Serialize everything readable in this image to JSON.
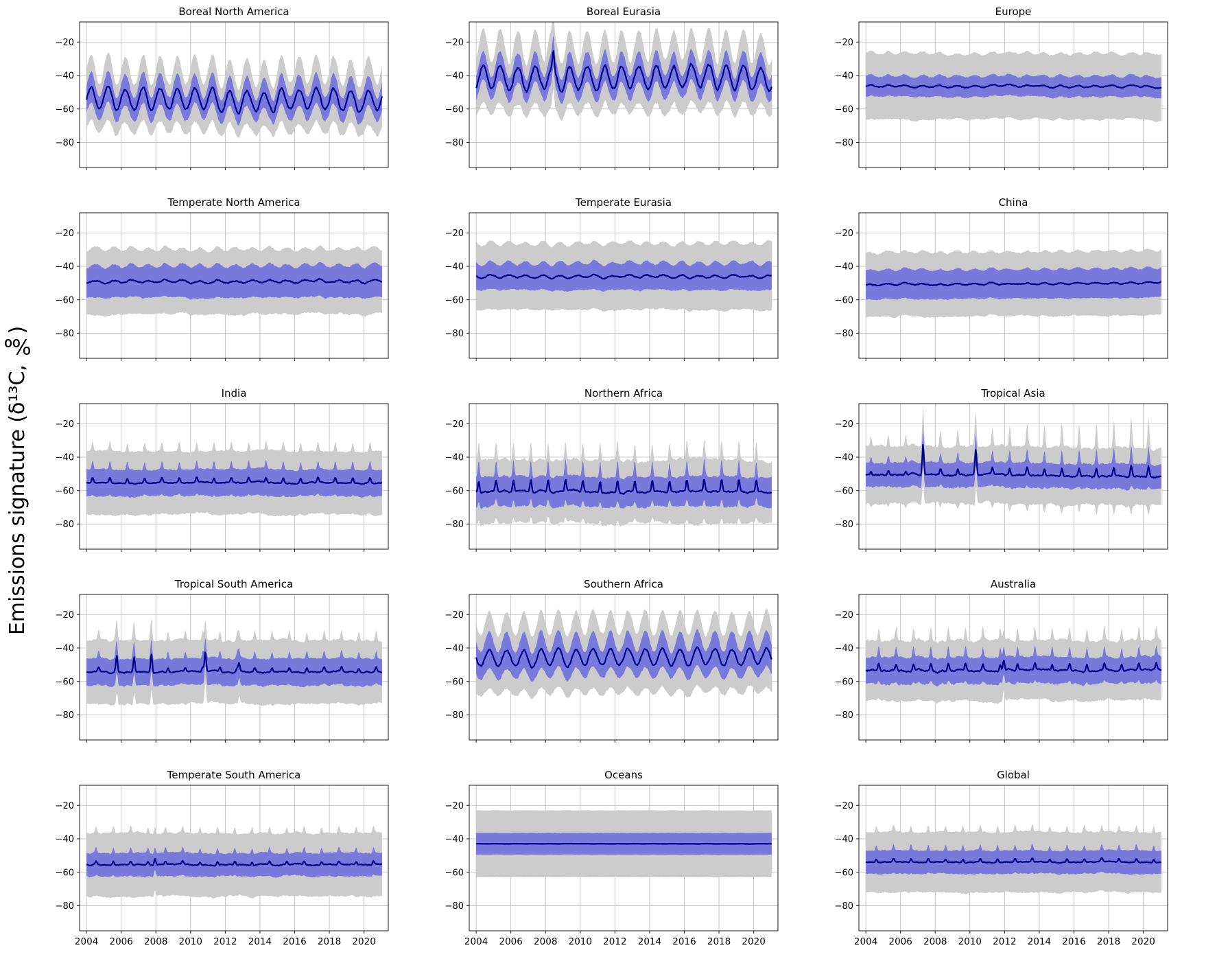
{
  "figure": {
    "ylabel": "Emissions signature (δ¹³C, ‰)",
    "background": "#ffffff",
    "colors": {
      "line": "#00008b",
      "band_inner": "#7070dd",
      "band_outer": "#cccccc",
      "grid": "#b8b8b8",
      "box": "#1a1a1a"
    },
    "axes": {
      "x_min": 2003.6,
      "x_max": 2021.4,
      "y_top": -8,
      "y_bottom": -95,
      "y_ticks": [
        -20,
        -40,
        -60,
        -80
      ],
      "y_tick_labels": [
        "−20",
        "−40",
        "−60",
        "−80"
      ],
      "x_ticks": [
        2004,
        2006,
        2008,
        2010,
        2012,
        2014,
        2016,
        2018,
        2020
      ],
      "x_tick_labels": [
        "2004",
        "2006",
        "2008",
        "2010",
        "2012",
        "2014",
        "2016",
        "2018",
        "2020"
      ]
    }
  },
  "chart_data": [
    {
      "title": "Boreal North America",
      "type": "line",
      "x_range": [
        2004,
        2021
      ],
      "ylim": [
        -95,
        -8
      ],
      "mean": -54,
      "trend": -1,
      "noise": 1.2,
      "edge_noise": 1,
      "seasonal": {
        "shape": "sine",
        "amplitude": 6.5,
        "phase": 0
      },
      "band_inner_halfwidth": 7,
      "band_inner_seasonal": 2,
      "band_outer_halfwidth": 15,
      "band_outer_seasonal": 5,
      "spikes": []
    },
    {
      "title": "Boreal Eurasia",
      "type": "line",
      "x_range": [
        2004,
        2021
      ],
      "ylim": [
        -95,
        -8
      ],
      "mean": -42.5,
      "trend": 1.5,
      "noise": 1.5,
      "edge_noise": 1,
      "seasonal": {
        "shape": "sine",
        "amplitude": 7,
        "phase": 0.15
      },
      "band_inner_halfwidth": 7,
      "band_inner_seasonal": 2,
      "band_outer_halfwidth": 16,
      "band_outer_seasonal": 6,
      "spikes": [
        {
          "t": 2008.45,
          "h": 10
        }
      ]
    },
    {
      "title": "Europe",
      "type": "line",
      "x_range": [
        2004,
        2021
      ],
      "ylim": [
        -95,
        -8
      ],
      "mean": -46.5,
      "trend": 0,
      "noise": 0.5,
      "edge_noise": 0.6,
      "seasonal": {
        "shape": "sine",
        "amplitude": 0.6,
        "phase": 0
      },
      "band_inner_halfwidth": 6,
      "band_inner_seasonal": 0.5,
      "band_outer_halfwidth": 19.5,
      "band_outer_seasonal": 0.5,
      "spikes": []
    },
    {
      "title": "Temperate North America",
      "type": "line",
      "x_range": [
        2004,
        2021
      ],
      "ylim": [
        -95,
        -8
      ],
      "mean": -49,
      "trend": 0,
      "noise": 0.6,
      "edge_noise": 0.6,
      "seasonal": {
        "shape": "sine",
        "amplitude": 0.7,
        "phase": 0.3
      },
      "band_inner_halfwidth": 9,
      "band_inner_seasonal": 1,
      "band_outer_halfwidth": 19,
      "band_outer_seasonal": 1,
      "spikes": []
    },
    {
      "title": "Temperate Eurasia",
      "type": "line",
      "x_range": [
        2004,
        2021
      ],
      "ylim": [
        -95,
        -8
      ],
      "mean": -46,
      "trend": 0,
      "noise": 0.5,
      "edge_noise": 0.6,
      "seasonal": {
        "shape": "sine",
        "amplitude": 0.8,
        "phase": 0.6
      },
      "band_inner_halfwidth": 7.5,
      "band_inner_seasonal": 1,
      "band_outer_halfwidth": 19.5,
      "band_outer_seasonal": 1,
      "spikes": []
    },
    {
      "title": "China",
      "type": "line",
      "x_range": [
        2004,
        2021
      ],
      "ylim": [
        -95,
        -8
      ],
      "mean": -51,
      "trend": 1.2,
      "noise": 0.4,
      "edge_noise": 0.6,
      "seasonal": {
        "shape": "sine",
        "amplitude": 0.5,
        "phase": 0
      },
      "band_inner_halfwidth": 8.5,
      "band_inner_seasonal": 0.5,
      "band_outer_halfwidth": 19,
      "band_outer_seasonal": 0.5,
      "spikes": []
    },
    {
      "title": "India",
      "type": "line",
      "x_range": [
        2004,
        2021
      ],
      "ylim": [
        -95,
        -8
      ],
      "mean": -54.5,
      "trend": 0,
      "noise": 0.5,
      "edge_noise": 0.7,
      "seasonal": {
        "shape": "pulse",
        "amplitude": 3,
        "peak": 0.35
      },
      "band_inner_halfwidth": 8,
      "band_inner_seasonal": 2,
      "band_outer_halfwidth": 19,
      "band_outer_seasonal": 2.5,
      "spikes": []
    },
    {
      "title": "Northern Africa",
      "type": "line",
      "x_range": [
        2004,
        2021
      ],
      "ylim": [
        -95,
        -8
      ],
      "mean": -59,
      "trend": 0,
      "noise": 0.8,
      "edge_noise": 0.9,
      "seasonal": {
        "shape": "pulse",
        "amplitude": 7,
        "peak": 0.15
      },
      "band_inner_halfwidth": 9,
      "band_inner_seasonal": 3,
      "band_outer_halfwidth": 19,
      "band_outer_seasonal": 4,
      "spikes": []
    },
    {
      "title": "Tropical Asia",
      "type": "line",
      "x_range": [
        2004,
        2021
      ],
      "ylim": [
        -95,
        -8
      ],
      "mean": -50,
      "trend": 0,
      "noise": 0.8,
      "edge_noise": 0.9,
      "seasonal": {
        "shape": "pulse",
        "amplitude": 4,
        "peak": 0.3,
        "growth": [
          0.5,
          1.1
        ]
      },
      "band_inner_halfwidth": 7.5,
      "band_inner_seasonal": 3,
      "band_outer_halfwidth": 17,
      "band_outer_seasonal": 8,
      "spikes": [
        {
          "t": 2007.3,
          "h": 16
        },
        {
          "t": 2010.35,
          "h": 14
        }
      ]
    },
    {
      "title": "Tropical South America",
      "type": "line",
      "x_range": [
        2004,
        2021
      ],
      "ylim": [
        -95,
        -8
      ],
      "mean": -53.5,
      "trend": 0,
      "noise": 0.6,
      "edge_noise": 0.7,
      "seasonal": {
        "shape": "pulse",
        "amplitude": 2.5,
        "peak": 0.7
      },
      "band_inner_halfwidth": 8,
      "band_inner_seasonal": 2,
      "band_outer_halfwidth": 19,
      "band_outer_seasonal": 3,
      "spikes": [
        {
          "t": 2005.75,
          "h": 9
        },
        {
          "t": 2006.75,
          "h": 8
        },
        {
          "t": 2007.75,
          "h": 10
        },
        {
          "t": 2010.85,
          "h": 12
        },
        {
          "t": 2012.8,
          "h": 5
        }
      ]
    },
    {
      "title": "Southern Africa",
      "type": "line",
      "x_range": [
        2004,
        2021
      ],
      "ylim": [
        -95,
        -8
      ],
      "mean": -46,
      "trend": 0,
      "noise": 1,
      "edge_noise": 0.9,
      "seasonal": {
        "shape": "sine",
        "amplitude": 5,
        "phase": 0.5
      },
      "band_inner_halfwidth": 8,
      "band_inner_seasonal": 3,
      "band_outer_halfwidth": 18,
      "band_outer_seasonal": 5,
      "spikes": []
    },
    {
      "title": "Australia",
      "type": "line",
      "x_range": [
        2004,
        2021
      ],
      "ylim": [
        -95,
        -8
      ],
      "mean": -52.5,
      "trend": 0,
      "noise": 0.8,
      "edge_noise": 0.8,
      "seasonal": {
        "shape": "pulse",
        "amplitude": 4,
        "peak": 0.75
      },
      "band_inner_halfwidth": 8,
      "band_inner_seasonal": 2.5,
      "band_outer_halfwidth": 18,
      "band_outer_seasonal": 4,
      "spikes": [
        {
          "t": 2011.95,
          "h": 6
        }
      ]
    },
    {
      "title": "Temperate South America",
      "type": "line",
      "x_range": [
        2004,
        2021
      ],
      "ylim": [
        -95,
        -8
      ],
      "mean": -55,
      "trend": 0,
      "noise": 0.5,
      "edge_noise": 0.6,
      "seasonal": {
        "shape": "pulse",
        "amplitude": 2,
        "peak": 0.55
      },
      "band_inner_halfwidth": 7,
      "band_inner_seasonal": 1.5,
      "band_outer_halfwidth": 19,
      "band_outer_seasonal": 2,
      "spikes": [
        {
          "t": 2007.95,
          "h": 4
        }
      ]
    },
    {
      "title": "Oceans",
      "type": "line",
      "x_range": [
        2004,
        2021
      ],
      "ylim": [
        -95,
        -8
      ],
      "mean": -43,
      "trend": 0,
      "noise": 0.06,
      "edge_noise": 0.08,
      "seasonal": {
        "shape": "sine",
        "amplitude": 0.05,
        "phase": 0
      },
      "band_inner_halfwidth": 6.5,
      "band_inner_seasonal": 0,
      "band_outer_halfwidth": 20,
      "band_outer_seasonal": 0,
      "spikes": []
    },
    {
      "title": "Global",
      "type": "line",
      "x_range": [
        2004,
        2021
      ],
      "ylim": [
        -95,
        -8
      ],
      "mean": -53.5,
      "trend": 0,
      "noise": 0.4,
      "edge_noise": 0.6,
      "seasonal": {
        "shape": "pulse",
        "amplitude": 2,
        "peak": 0.6
      },
      "band_inner_halfwidth": 7,
      "band_inner_seasonal": 1.5,
      "band_outer_halfwidth": 18,
      "band_outer_seasonal": 2,
      "spikes": []
    }
  ]
}
